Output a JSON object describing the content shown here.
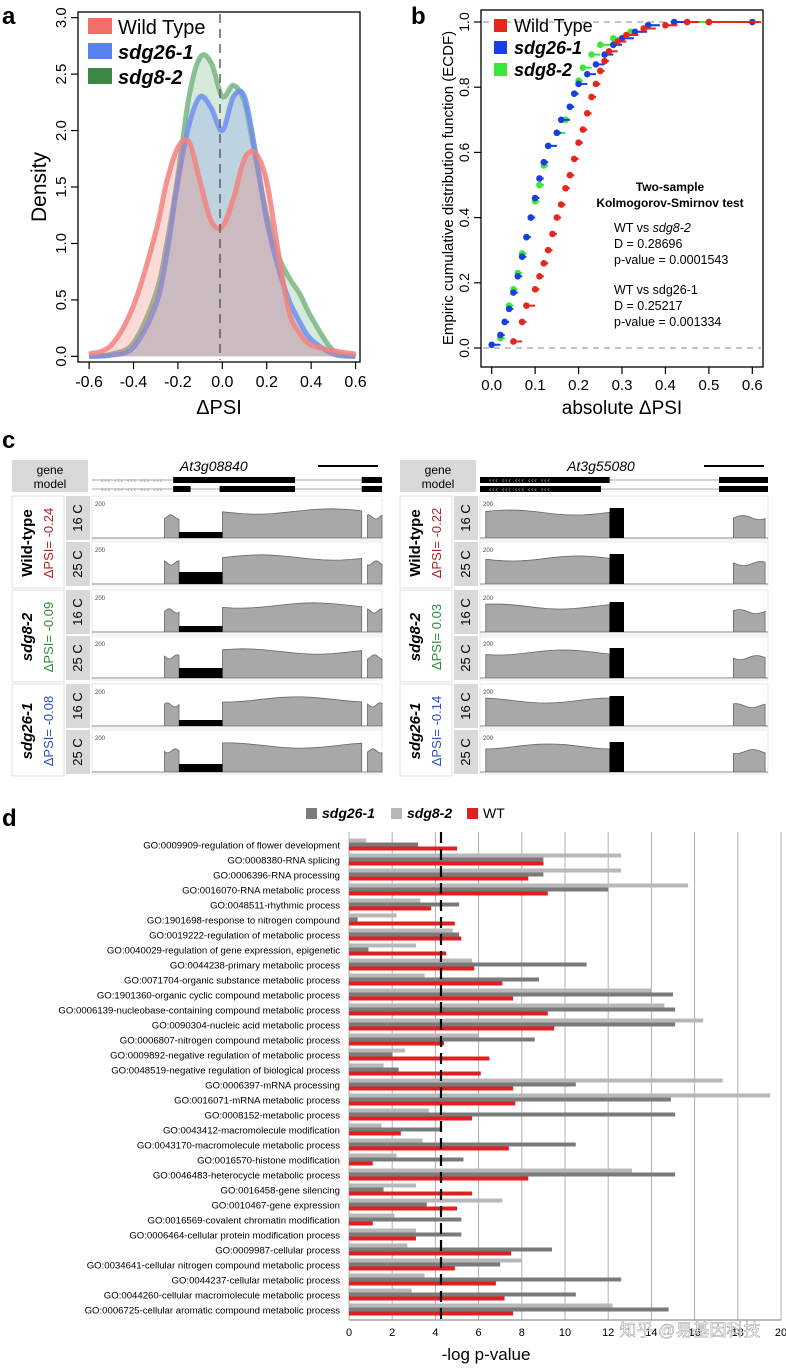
{
  "panels": {
    "a": {
      "letter": "a",
      "xlabel": "ΔPSI",
      "ylabel": "Density",
      "legend": [
        {
          "label": "Wild Type",
          "color": "#e8453a"
        },
        {
          "label": "sdg26-1",
          "color": "#3a66e6"
        },
        {
          "label": "sdg8-2",
          "color": "#2e8a3c"
        }
      ],
      "xticks": [
        "-0.6",
        "-0.4",
        "-0.2",
        "0.0",
        "0.2",
        "0.4",
        "0.6"
      ],
      "yticks": [
        "0.0",
        "0.5",
        "1.0",
        "1.5",
        "2.0",
        "2.5",
        "3.0"
      ]
    },
    "b": {
      "letter": "b",
      "xlabel": "absolute ΔPSI",
      "ylabel": "Empiric cumulative distribution function (ECDF)",
      "legend": [
        {
          "label": "Wild Type",
          "color": "#e8251d"
        },
        {
          "label": "sdg26-1",
          "color": "#1a3fe0"
        },
        {
          "label": "sdg8-2",
          "color": "#3ae83a"
        }
      ],
      "xticks": [
        "0.0",
        "0.1",
        "0.2",
        "0.3",
        "0.4",
        "0.5",
        "0.6"
      ],
      "yticks": [
        "0.0",
        "0.2",
        "0.4",
        "0.6",
        "0.8",
        "1.0"
      ],
      "test_title1": "Two-sample",
      "test_title2": "Kolmogorov-Smirnov test",
      "cmp1_a": "WT vs ",
      "cmp1_b": "sdg8-2",
      "cmp1_d": "D = 0.28696",
      "cmp1_p": "p-value = 0.0001543",
      "cmp2": "WT vs sdg26-1",
      "cmp2_d": "D = 0.25217",
      "cmp2_p": "p-value = 0.001334"
    },
    "c": {
      "letter": "c",
      "gene_model": [
        "gene",
        "model"
      ],
      "left_gene": "At3g08840",
      "right_gene": "At3g55080",
      "left": [
        {
          "genotype": "Wild-type",
          "psi": "ΔPSI= -0.24",
          "psi_color": "#b22222"
        },
        {
          "genotype": "sdg8-2",
          "psi": "ΔPSI= -0.09",
          "psi_color": "#2e8a3c"
        },
        {
          "genotype": "sdg26-1",
          "psi": "ΔPSI= -0.08",
          "psi_color": "#2c4fc4"
        }
      ],
      "right": [
        {
          "genotype": "Wild-type",
          "psi": "ΔPSI= -0.22",
          "psi_color": "#b22222"
        },
        {
          "genotype": "sdg8-2",
          "psi": "ΔPSI= 0.03",
          "psi_color": "#2e8a3c"
        },
        {
          "genotype": "sdg26-1",
          "psi": "ΔPSI= -0.14",
          "psi_color": "#2c4fc4"
        }
      ],
      "temps": [
        "16 C",
        "25 C"
      ]
    },
    "d": {
      "letter": "d",
      "xlabel": "-log p-value",
      "legend": [
        {
          "label": "sdg26-1",
          "color": "#7a7a7a"
        },
        {
          "label": "sdg8-2",
          "color": "#b8b8b8"
        },
        {
          "label": "WT",
          "color": "#e02020"
        }
      ],
      "xticks": [
        "0",
        "2",
        "4",
        "6",
        "8",
        "10",
        "12",
        "14",
        "16",
        "18",
        "20"
      ],
      "watermark": "知乎 @易基因科技"
    }
  },
  "chart_data": [
    {
      "panel": "a",
      "type": "area",
      "title": "",
      "xlabel": "ΔPSI",
      "ylabel": "Density",
      "xlim": [
        -0.65,
        0.62
      ],
      "ylim": [
        -0.05,
        3.05
      ],
      "x": [
        -0.6,
        -0.5,
        -0.4,
        -0.3,
        -0.25,
        -0.2,
        -0.15,
        -0.1,
        -0.05,
        0.0,
        0.05,
        0.1,
        0.15,
        0.2,
        0.25,
        0.3,
        0.35,
        0.4,
        0.5,
        0.6
      ],
      "series": [
        {
          "name": "Wild Type",
          "values": [
            0.02,
            0.1,
            0.45,
            1.1,
            1.55,
            1.85,
            1.9,
            1.55,
            1.2,
            1.15,
            1.4,
            1.75,
            1.8,
            1.55,
            0.95,
            0.4,
            0.2,
            0.1,
            0.05,
            0.02
          ]
        },
        {
          "name": "sdg26-1",
          "values": [
            0.0,
            0.01,
            0.08,
            0.45,
            0.9,
            1.55,
            2.05,
            2.3,
            2.2,
            2.0,
            2.3,
            2.3,
            1.8,
            1.2,
            0.8,
            0.5,
            0.3,
            0.15,
            0.02,
            0.0
          ]
        },
        {
          "name": "sdg8-2",
          "values": [
            0.0,
            0.02,
            0.12,
            0.55,
            1.0,
            1.6,
            2.3,
            2.65,
            2.6,
            2.3,
            2.4,
            2.25,
            1.75,
            1.25,
            0.9,
            0.7,
            0.55,
            0.35,
            0.05,
            0.0
          ]
        }
      ]
    },
    {
      "panel": "b",
      "type": "scatter",
      "title": "",
      "xlabel": "absolute ΔPSI",
      "ylabel": "Empiric cumulative distribution function (ECDF)",
      "xlim": [
        -0.02,
        0.62
      ],
      "ylim": [
        0,
        1.0
      ],
      "series": [
        {
          "name": "Wild Type",
          "x": [
            0.05,
            0.07,
            0.08,
            0.1,
            0.11,
            0.12,
            0.13,
            0.14,
            0.15,
            0.16,
            0.17,
            0.18,
            0.19,
            0.2,
            0.21,
            0.22,
            0.23,
            0.24,
            0.25,
            0.26,
            0.27,
            0.29,
            0.31,
            0.35,
            0.4,
            0.45,
            0.5
          ],
          "y": [
            0.02,
            0.08,
            0.13,
            0.18,
            0.22,
            0.26,
            0.3,
            0.35,
            0.4,
            0.44,
            0.49,
            0.53,
            0.58,
            0.63,
            0.67,
            0.72,
            0.77,
            0.81,
            0.85,
            0.88,
            0.91,
            0.94,
            0.96,
            0.98,
            0.99,
            1.0,
            1.0
          ]
        },
        {
          "name": "sdg26-1",
          "x": [
            0.0,
            0.02,
            0.03,
            0.04,
            0.05,
            0.06,
            0.07,
            0.08,
            0.09,
            0.1,
            0.11,
            0.12,
            0.13,
            0.15,
            0.16,
            0.18,
            0.19,
            0.2,
            0.22,
            0.24,
            0.26,
            0.28,
            0.3,
            0.33,
            0.36,
            0.42,
            0.5,
            0.6
          ],
          "y": [
            0.01,
            0.04,
            0.08,
            0.12,
            0.17,
            0.22,
            0.28,
            0.34,
            0.4,
            0.46,
            0.52,
            0.57,
            0.62,
            0.66,
            0.7,
            0.74,
            0.78,
            0.81,
            0.84,
            0.87,
            0.9,
            0.93,
            0.95,
            0.97,
            0.99,
            1.0,
            1.0,
            1.0
          ]
        },
        {
          "name": "sdg8-2",
          "x": [
            0.02,
            0.03,
            0.04,
            0.05,
            0.06,
            0.07,
            0.08,
            0.09,
            0.1,
            0.11,
            0.12,
            0.13,
            0.15,
            0.17,
            0.18,
            0.19,
            0.2,
            0.21,
            0.23,
            0.25,
            0.28,
            0.32,
            0.36,
            0.45
          ],
          "y": [
            0.03,
            0.08,
            0.13,
            0.18,
            0.23,
            0.29,
            0.34,
            0.4,
            0.45,
            0.5,
            0.56,
            0.62,
            0.66,
            0.7,
            0.74,
            0.78,
            0.82,
            0.86,
            0.9,
            0.93,
            0.95,
            0.97,
            0.99,
            1.0
          ]
        }
      ]
    },
    {
      "panel": "d",
      "type": "bar",
      "orientation": "horizontal",
      "title": "",
      "xlabel": "-log p-value",
      "xlim": [
        0,
        20
      ],
      "threshold": 4.2,
      "categories": [
        "GO:0009909-regulation of flower development",
        "GO:0008380-RNA splicing",
        "GO:0006396-RNA processing",
        "GO:0016070-RNA metabolic process",
        "GO:0048511-rhythmic process",
        "GO:1901698-response to nitrogen compound",
        "GO:0019222-regulation of metabolic process",
        "GO:0040029-regulation of gene expression, epigenetic",
        "GO:0044238-primary metabolic process",
        "GO:0071704-organic substance metabolic process",
        "GO:1901360-organic cyclic compound metabolic process",
        "GO:0006139-nucleobase-containing compound metabolic process",
        "GO:0090304-nucleic acid metabolic process",
        "GO:0006807-nitrogen compound metabolic process",
        "GO:0009892-negative regulation of metabolic process",
        "GO:0048519-negative regulation of biological process",
        "GO:0006397-mRNA processing",
        "GO:0016071-mRNA metabolic process",
        "GO:0008152-metabolic process",
        "GO:0043412-macromolecule modification",
        "GO:0043170-macromolecule metabolic process",
        "GO:0016570-histone modification",
        "GO:0046483-heterocycle metabolic process",
        "GO:0016458-gene silencing",
        "GO:0010467-gene expression",
        "GO:0016569-covalent chromatin modification",
        "GO:0006464-cellular protein modification process",
        "GO:0009987-cellular process",
        "GO:0034641-cellular nitrogen compound metabolic process",
        "GO:0044237-cellular metabolic process",
        "GO:0044260-cellular macromolecule metabolic process",
        "GO:0006725-cellular aromatic compound metabolic process"
      ],
      "series": [
        {
          "name": "sdg26-1",
          "values": [
            3.2,
            9.0,
            9.0,
            12.0,
            5.1,
            0.4,
            5.1,
            0.9,
            11.0,
            8.8,
            15.0,
            15.1,
            15.1,
            8.6,
            2.0,
            2.3,
            10.5,
            14.9,
            15.1,
            4.3,
            10.5,
            5.3,
            15.1,
            1.6,
            3.6,
            5.2,
            5.2,
            9.4,
            7.0,
            12.6,
            10.5,
            14.8
          ]
        },
        {
          "name": "sdg8-2",
          "values": [
            0.8,
            12.6,
            12.6,
            15.7,
            3.3,
            2.2,
            4.8,
            3.1,
            5.7,
            3.5,
            14.0,
            14.6,
            16.4,
            6.0,
            2.6,
            1.6,
            17.3,
            19.5,
            3.7,
            1.5,
            3.4,
            2.2,
            13.1,
            3.1,
            7.1,
            2.1,
            3.1,
            2.7,
            8.0,
            3.5,
            2.9,
            12.2
          ]
        },
        {
          "name": "WT",
          "values": [
            5.0,
            9.0,
            8.3,
            9.2,
            3.8,
            4.9,
            5.2,
            4.5,
            5.8,
            7.1,
            7.6,
            9.2,
            9.5,
            4.4,
            6.5,
            6.1,
            7.6,
            7.7,
            5.7,
            2.4,
            7.4,
            1.1,
            8.3,
            5.7,
            5.0,
            1.1,
            3.1,
            7.5,
            4.9,
            6.8,
            7.2,
            7.6
          ]
        }
      ]
    }
  ]
}
